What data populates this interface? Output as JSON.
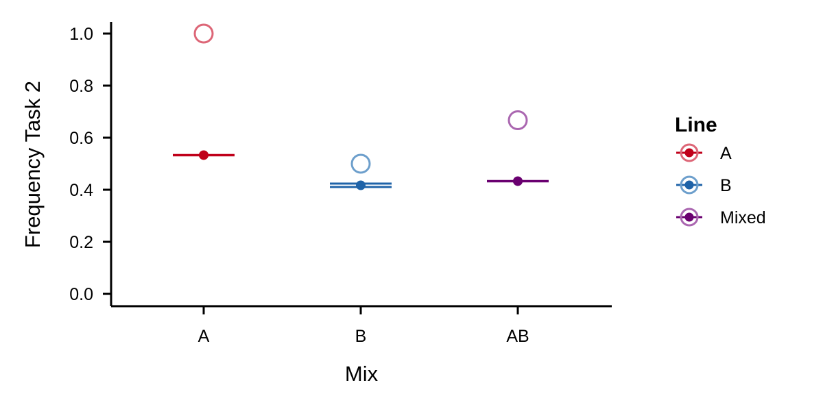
{
  "chart_data": {
    "type": "scatter",
    "xlabel": "Mix",
    "ylabel": "Frequency Task 2",
    "categories": [
      "A",
      "B",
      "AB"
    ],
    "ylim": [
      -0.05,
      1.05
    ],
    "yticks": [
      0.0,
      0.2,
      0.4,
      0.6,
      0.8,
      1.0
    ],
    "ytick_labels": [
      "0.0",
      "0.2",
      "0.4",
      "0.6",
      "0.8",
      "1.0"
    ],
    "grid": false,
    "legend": {
      "title": "Line",
      "position": "right",
      "entries": [
        "A",
        "B",
        "Mixed"
      ]
    },
    "series": [
      {
        "name": "A",
        "color": "#c0001a",
        "open_color": "#dd6677",
        "category": "A",
        "observed": 1.0,
        "estimate": 0.533
      },
      {
        "name": "B",
        "color": "#1f63a8",
        "open_color": "#6d9fcc",
        "category": "B",
        "observed": 0.5,
        "estimate": 0.417
      },
      {
        "name": "Mixed",
        "color": "#6a0070",
        "open_color": "#aa66b0",
        "category": "AB",
        "observed": 0.667,
        "estimate": 0.433
      }
    ]
  }
}
